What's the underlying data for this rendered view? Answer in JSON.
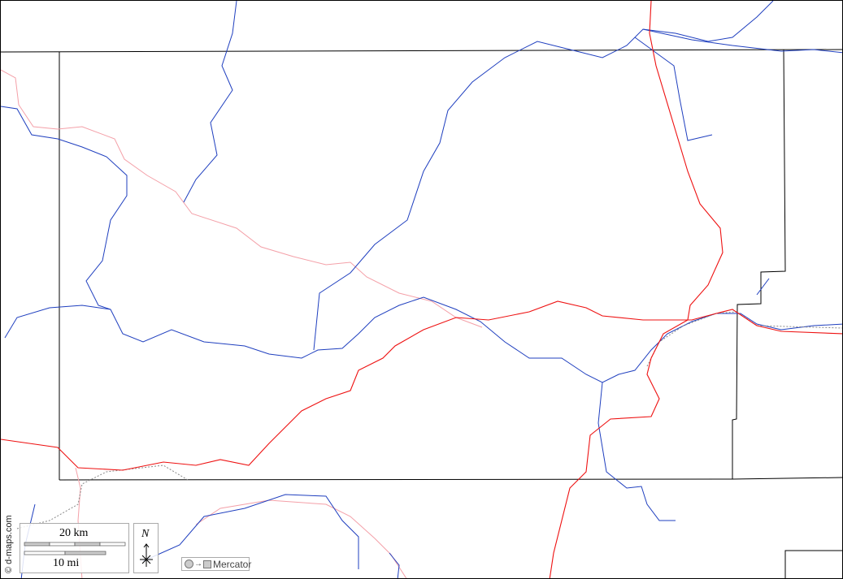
{
  "map": {
    "projection_label": "Mercator",
    "copyright": "© d-maps.com",
    "north_label": "N",
    "scale": {
      "km_label": "20 km",
      "mi_label": "10 mi"
    },
    "colors": {
      "river": "#1f3fbf",
      "major_road": "#ee1111",
      "minor_road": "#f4a0a8",
      "border": "#000000",
      "railway": "#888888"
    }
  }
}
